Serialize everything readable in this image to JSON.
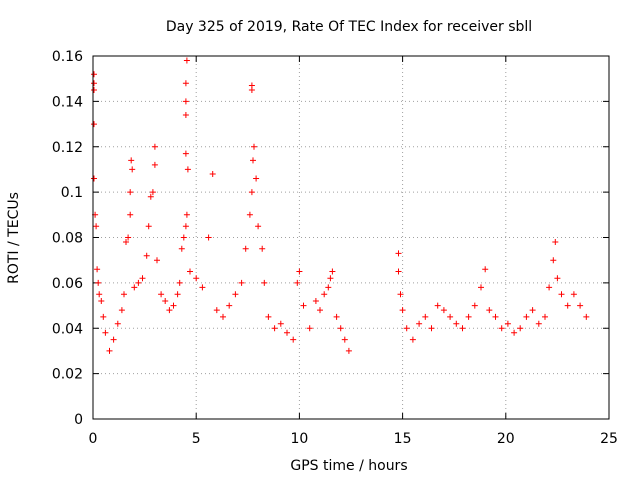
{
  "chart_data": {
    "type": "scatter",
    "title": "Day 325 of 2019, Rate Of TEC Index for receiver sbll",
    "xlabel": "GPS time / hours",
    "ylabel": "ROTI / TECUs",
    "xlim": [
      0,
      25
    ],
    "ylim": [
      0,
      0.16
    ],
    "xticks": [
      0,
      5,
      10,
      15,
      20,
      25
    ],
    "yticks": [
      0,
      0.02,
      0.04,
      0.06,
      0.08,
      0.1,
      0.12,
      0.14,
      0.16
    ],
    "xtick_labels": [
      "0",
      "5",
      "10",
      "15",
      "20",
      "25"
    ],
    "ytick_labels": [
      "0",
      "0.02",
      "0.04",
      "0.06",
      "0.08",
      "0.1",
      "0.12",
      "0.14",
      "0.16"
    ],
    "grid": true,
    "marker": "+",
    "color": "#ff0000",
    "series": [
      {
        "name": "ROTI",
        "points": [
          [
            0.05,
            0.152
          ],
          [
            0.05,
            0.148
          ],
          [
            0.05,
            0.145
          ],
          [
            0.05,
            0.13
          ],
          [
            0.05,
            0.106
          ],
          [
            0.1,
            0.09
          ],
          [
            0.15,
            0.085
          ],
          [
            0.2,
            0.066
          ],
          [
            0.25,
            0.06
          ],
          [
            0.3,
            0.055
          ],
          [
            0.4,
            0.052
          ],
          [
            0.5,
            0.045
          ],
          [
            0.6,
            0.038
          ],
          [
            0.8,
            0.03
          ],
          [
            1.0,
            0.035
          ],
          [
            1.2,
            0.042
          ],
          [
            1.4,
            0.048
          ],
          [
            1.5,
            0.055
          ],
          [
            1.6,
            0.078
          ],
          [
            1.7,
            0.08
          ],
          [
            1.8,
            0.09
          ],
          [
            1.8,
            0.1
          ],
          [
            1.85,
            0.114
          ],
          [
            1.9,
            0.11
          ],
          [
            2.0,
            0.058
          ],
          [
            2.2,
            0.06
          ],
          [
            2.4,
            0.062
          ],
          [
            2.6,
            0.072
          ],
          [
            2.7,
            0.085
          ],
          [
            2.8,
            0.098
          ],
          [
            2.9,
            0.1
          ],
          [
            3.0,
            0.112
          ],
          [
            3.0,
            0.12
          ],
          [
            3.1,
            0.07
          ],
          [
            3.3,
            0.055
          ],
          [
            3.5,
            0.052
          ],
          [
            3.7,
            0.048
          ],
          [
            3.9,
            0.05
          ],
          [
            4.1,
            0.055
          ],
          [
            4.2,
            0.06
          ],
          [
            4.3,
            0.075
          ],
          [
            4.4,
            0.08
          ],
          [
            4.5,
            0.085
          ],
          [
            4.55,
            0.09
          ],
          [
            4.6,
            0.11
          ],
          [
            4.5,
            0.117
          ],
          [
            4.5,
            0.134
          ],
          [
            4.5,
            0.14
          ],
          [
            4.5,
            0.148
          ],
          [
            4.55,
            0.158
          ],
          [
            4.7,
            0.065
          ],
          [
            5.0,
            0.062
          ],
          [
            5.3,
            0.058
          ],
          [
            5.6,
            0.08
          ],
          [
            5.8,
            0.108
          ],
          [
            6.0,
            0.048
          ],
          [
            6.3,
            0.045
          ],
          [
            6.6,
            0.05
          ],
          [
            6.9,
            0.055
          ],
          [
            7.2,
            0.06
          ],
          [
            7.4,
            0.075
          ],
          [
            7.6,
            0.09
          ],
          [
            7.7,
            0.1
          ],
          [
            7.75,
            0.114
          ],
          [
            7.8,
            0.12
          ],
          [
            7.7,
            0.145
          ],
          [
            7.7,
            0.147
          ],
          [
            7.9,
            0.106
          ],
          [
            8.0,
            0.085
          ],
          [
            8.2,
            0.075
          ],
          [
            8.3,
            0.06
          ],
          [
            8.5,
            0.045
          ],
          [
            8.8,
            0.04
          ],
          [
            9.1,
            0.042
          ],
          [
            9.4,
            0.038
          ],
          [
            9.7,
            0.035
          ],
          [
            9.9,
            0.06
          ],
          [
            10.0,
            0.065
          ],
          [
            10.2,
            0.05
          ],
          [
            10.5,
            0.04
          ],
          [
            10.8,
            0.052
          ],
          [
            11.0,
            0.048
          ],
          [
            11.2,
            0.055
          ],
          [
            11.4,
            0.058
          ],
          [
            11.5,
            0.062
          ],
          [
            11.6,
            0.065
          ],
          [
            11.8,
            0.045
          ],
          [
            12.0,
            0.04
          ],
          [
            12.2,
            0.035
          ],
          [
            12.4,
            0.03
          ],
          [
            14.8,
            0.073
          ],
          [
            14.8,
            0.065
          ],
          [
            14.9,
            0.055
          ],
          [
            15.0,
            0.048
          ],
          [
            15.2,
            0.04
          ],
          [
            15.5,
            0.035
          ],
          [
            15.8,
            0.042
          ],
          [
            16.1,
            0.045
          ],
          [
            16.4,
            0.04
          ],
          [
            16.7,
            0.05
          ],
          [
            17.0,
            0.048
          ],
          [
            17.3,
            0.045
          ],
          [
            17.6,
            0.042
          ],
          [
            17.9,
            0.04
          ],
          [
            18.2,
            0.045
          ],
          [
            18.5,
            0.05
          ],
          [
            18.8,
            0.058
          ],
          [
            19.0,
            0.066
          ],
          [
            19.2,
            0.048
          ],
          [
            19.5,
            0.045
          ],
          [
            19.8,
            0.04
          ],
          [
            20.1,
            0.042
          ],
          [
            20.4,
            0.038
          ],
          [
            20.7,
            0.04
          ],
          [
            21.0,
            0.045
          ],
          [
            21.3,
            0.048
          ],
          [
            21.6,
            0.042
          ],
          [
            21.9,
            0.045
          ],
          [
            22.1,
            0.058
          ],
          [
            22.3,
            0.07
          ],
          [
            22.4,
            0.078
          ],
          [
            22.5,
            0.062
          ],
          [
            22.7,
            0.055
          ],
          [
            23.0,
            0.05
          ],
          [
            23.3,
            0.055
          ],
          [
            23.6,
            0.05
          ],
          [
            23.9,
            0.045
          ]
        ]
      }
    ]
  }
}
